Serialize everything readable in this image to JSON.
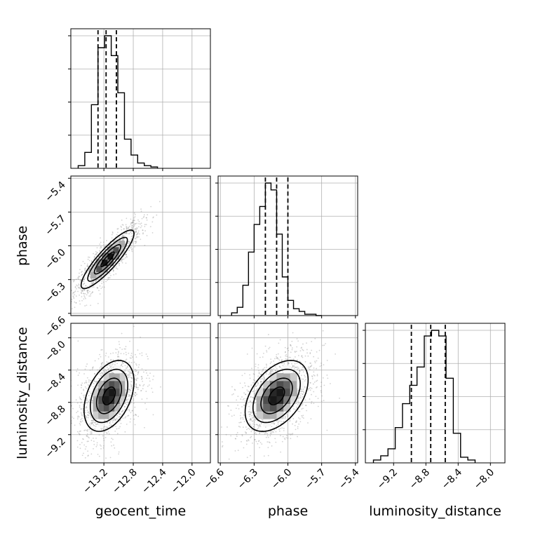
{
  "chart_data": {
    "type": "corner",
    "parameters": [
      "geocent_time",
      "phase",
      "luminosity_distance"
    ],
    "axis_labels": {
      "x": [
        "geocent_time",
        "phase",
        "luminosity_distance"
      ],
      "y": [
        "",
        "phase",
        "luminosity_distance"
      ]
    },
    "ranges": {
      "geocent_time": [
        -13.65,
        -11.75
      ],
      "phase": [
        -6.62,
        -5.38
      ],
      "luminosity_distance": [
        -9.55,
        -7.82
      ]
    },
    "ticks": {
      "geocent_time": [
        -13.2,
        -12.8,
        -12.4,
        -12.0
      ],
      "phase": [
        -6.6,
        -6.3,
        -6.0,
        -5.7,
        -5.4
      ],
      "luminosity_distance": [
        -9.2,
        -8.8,
        -8.4,
        -8.0
      ]
    },
    "tick_labels": {
      "geocent_time": [
        "−13.2",
        "−12.8",
        "−12.4",
        "−12.0"
      ],
      "phase": [
        "−6.6",
        "−6.3",
        "−6.0",
        "−5.7",
        "−5.4"
      ],
      "luminosity_distance": [
        "−9.2",
        "−8.8",
        "−8.4",
        "−8.0"
      ]
    },
    "phase_ylabels_row": [
      "−5.4",
      "−5.7",
      "−6.0",
      "−6.3",
      "−6.6"
    ],
    "quantiles": {
      "geocent_time": [
        -13.28,
        -13.17,
        -13.03
      ],
      "phase": [
        -6.2,
        -6.1,
        -6.0
      ],
      "luminosity_distance": [
        -8.98,
        -8.74,
        -8.56
      ]
    },
    "histograms": {
      "geocent_time": {
        "bins": [
          -13.55,
          -13.46,
          -13.37,
          -13.28,
          -13.19,
          -13.1,
          -13.01,
          -12.92,
          -12.83,
          -12.74,
          -12.65,
          -12.56,
          -12.47
        ],
        "counts": [
          0.02,
          0.12,
          0.48,
          0.91,
          1.0,
          0.85,
          0.57,
          0.22,
          0.1,
          0.04,
          0.02,
          0.01
        ]
      },
      "phase": {
        "bins": [
          -6.5,
          -6.45,
          -6.4,
          -6.35,
          -6.3,
          -6.25,
          -6.2,
          -6.15,
          -6.1,
          -6.05,
          -6.0,
          -5.95,
          -5.9,
          -5.85,
          -5.8,
          -5.75,
          -5.7
        ],
        "counts": [
          0.02,
          0.06,
          0.22,
          0.46,
          0.66,
          0.79,
          0.96,
          0.91,
          0.59,
          0.28,
          0.11,
          0.05,
          0.03,
          0.01,
          0.01,
          0.0
        ]
      },
      "luminosity_distance": {
        "bins": [
          -9.45,
          -9.36,
          -9.27,
          -9.18,
          -9.09,
          -9.0,
          -8.91,
          -8.82,
          -8.73,
          -8.64,
          -8.55,
          -8.46,
          -8.37,
          -8.28,
          -8.19
        ],
        "counts": [
          0.02,
          0.05,
          0.1,
          0.25,
          0.42,
          0.55,
          0.68,
          0.9,
          0.94,
          0.9,
          0.6,
          0.21,
          0.04,
          0.02
        ]
      }
    },
    "pairs": [
      {
        "x": "geocent_time",
        "y": "phase",
        "mean": [
          -13.15,
          -6.12
        ],
        "sd": [
          0.18,
          0.13
        ],
        "rho": 0.88,
        "contour_levels_sigma": [
          0.5,
          1.0,
          1.5,
          2.0
        ]
      },
      {
        "x": "geocent_time",
        "y": "luminosity_distance",
        "mean": [
          -13.13,
          -8.72
        ],
        "sd": [
          0.17,
          0.22
        ],
        "rho": 0.4,
        "contour_levels_sigma": [
          0.5,
          1.0,
          1.5,
          2.0
        ]
      },
      {
        "x": "phase",
        "y": "luminosity_distance",
        "mean": [
          -6.1,
          -8.72
        ],
        "sd": [
          0.14,
          0.22
        ],
        "rho": 0.45,
        "contour_levels_sigma": [
          0.5,
          1.0,
          1.5,
          2.0
        ]
      }
    ],
    "grid": true,
    "colors": {
      "line": "#000000",
      "grid": "#b0b0b0",
      "scatter": "#808080"
    }
  }
}
